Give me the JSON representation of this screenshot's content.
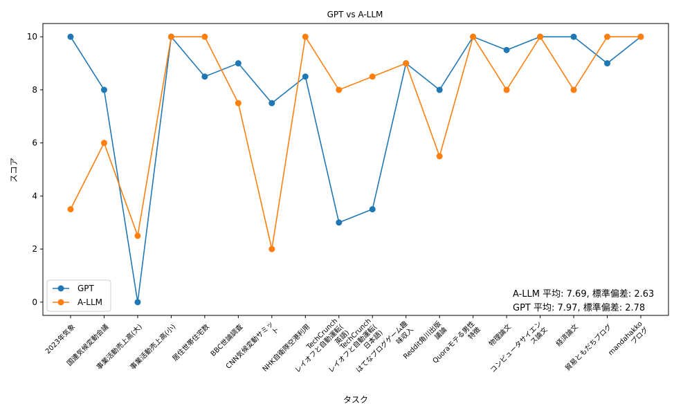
{
  "chart_data": {
    "type": "line",
    "title": "GPT vs A-LLM",
    "xlabel": "タスク",
    "ylabel": "スコア",
    "ylim": [
      -0.5,
      10.5
    ],
    "yticks": [
      0,
      2,
      4,
      6,
      8,
      10
    ],
    "grid": false,
    "legend_position": "lower-left",
    "categories": [
      "2023年気象",
      "国連気候変動会議",
      "事業活動売上高(大)",
      "事業活動売上高(小)",
      "居住世帯住宅数",
      "BBC世論調査",
      "CNN気候変動サミッ\nト",
      "NHK自衛隊空港利用",
      "TechCrunch\nレイオフと自動運転(\n英語)",
      "TechCrunch\nレイオフと自動運転(\n日本語)",
      "はてなブログゲーム趣\n味収入",
      "Reddit角川出版\n議論",
      "Quoraモテる男性\n特徴",
      "物理論文",
      "コンピュータサイエン\nス論文",
      "経済論文",
      "貿易ともだちブログ",
      "mandahakko\nブログ"
    ],
    "series": [
      {
        "name": "GPT",
        "color": "#1f77b4",
        "values": [
          10,
          8,
          0,
          10,
          8.5,
          9,
          7.5,
          8.5,
          3,
          3.5,
          9,
          8,
          10,
          9.5,
          10,
          10,
          9,
          10
        ]
      },
      {
        "name": "A-LLM",
        "color": "#ff7f0e",
        "values": [
          3.5,
          6,
          2.5,
          10,
          10,
          7.5,
          2,
          10,
          8,
          8.5,
          9,
          5.5,
          10,
          8,
          10,
          8,
          10,
          10
        ]
      }
    ],
    "annotations": [
      "A-LLM 平均: 7.69, 標準偏差: 2.63",
      "GPT 平均: 7.97, 標準偏差: 2.78"
    ]
  }
}
